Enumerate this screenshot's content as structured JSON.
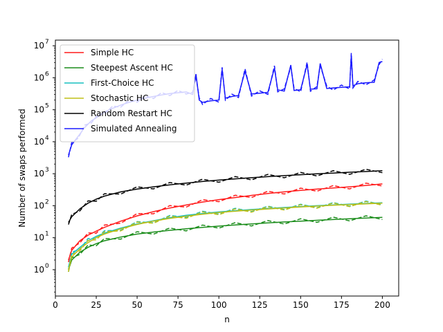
{
  "chart_data": {
    "type": "line",
    "title": "",
    "xlabel": "n",
    "ylabel": "Number of swaps performed",
    "xlim": [
      0,
      210
    ],
    "ylim": [
      0.15,
      15000000
    ],
    "yscale": "log",
    "grid": false,
    "legend_position": "top-left",
    "x_ticks": [
      0,
      25,
      50,
      75,
      100,
      125,
      150,
      175,
      200
    ],
    "y_ticks": [
      {
        "value": 1,
        "exp": "0"
      },
      {
        "value": 10,
        "exp": "1"
      },
      {
        "value": 100,
        "exp": "2"
      },
      {
        "value": 1000,
        "exp": "3"
      },
      {
        "value": 10000,
        "exp": "4"
      },
      {
        "value": 100000,
        "exp": "5"
      },
      {
        "value": 1000000,
        "exp": "6"
      },
      {
        "value": 10000000,
        "exp": "7"
      }
    ],
    "series": [
      {
        "name": "Simple HC",
        "color": "#ff1a1a",
        "x": [
          8,
          10,
          15,
          20,
          25,
          30,
          40,
          50,
          60,
          70,
          80,
          90,
          100,
          110,
          120,
          130,
          140,
          150,
          160,
          170,
          180,
          190,
          200
        ],
        "values": [
          2,
          4,
          8,
          12,
          16,
          21,
          33,
          48,
          65,
          85,
          105,
          130,
          155,
          180,
          210,
          240,
          270,
          300,
          330,
          360,
          390,
          430,
          480
        ]
      },
      {
        "name": "Steepest Ascent HC",
        "color": "#1a8c1a",
        "x": [
          8,
          10,
          15,
          20,
          25,
          30,
          40,
          50,
          60,
          70,
          80,
          90,
          100,
          110,
          120,
          130,
          140,
          150,
          160,
          170,
          180,
          190,
          200
        ],
        "values": [
          1,
          2,
          3.5,
          5,
          6.5,
          8,
          10.5,
          13,
          15,
          17,
          19,
          21,
          23,
          25,
          27,
          29,
          31,
          33,
          35,
          37,
          39,
          41,
          43
        ]
      },
      {
        "name": "First-Choice HC",
        "color": "#17bfbf",
        "x": [
          8,
          10,
          15,
          20,
          25,
          30,
          40,
          50,
          60,
          70,
          80,
          90,
          100,
          110,
          120,
          130,
          140,
          150,
          160,
          170,
          180,
          190,
          200
        ],
        "values": [
          1.2,
          3,
          5,
          8,
          11,
          14,
          20,
          27,
          34,
          42,
          50,
          57,
          64,
          70,
          76,
          82,
          88,
          94,
          100,
          106,
          112,
          118,
          124
        ]
      },
      {
        "name": "Stochastic HC",
        "color": "#bfbf17",
        "x": [
          8,
          10,
          15,
          20,
          25,
          30,
          40,
          50,
          60,
          70,
          80,
          90,
          100,
          110,
          120,
          130,
          140,
          150,
          160,
          170,
          180,
          190,
          200
        ],
        "values": [
          1,
          2.5,
          4.5,
          7,
          10,
          13,
          19,
          26,
          33,
          40,
          47,
          54,
          61,
          67,
          73,
          79,
          85,
          91,
          97,
          103,
          109,
          114,
          120
        ]
      },
      {
        "name": "Random Restart HC",
        "color": "#000000",
        "x": [
          8,
          10,
          15,
          20,
          25,
          30,
          40,
          50,
          60,
          70,
          80,
          90,
          100,
          110,
          120,
          130,
          140,
          150,
          160,
          170,
          180,
          190,
          200
        ],
        "values": [
          30,
          45,
          80,
          120,
          160,
          200,
          270,
          330,
          390,
          450,
          510,
          570,
          630,
          690,
          750,
          810,
          870,
          930,
          990,
          1050,
          1110,
          1170,
          1250
        ]
      },
      {
        "name": "Simulated Annealing",
        "color": "#1a1aff",
        "x": [
          8,
          10,
          14,
          18,
          22,
          26,
          30,
          35,
          40,
          45,
          50,
          55,
          60,
          65,
          70,
          75,
          80,
          84,
          86,
          88,
          90,
          95,
          100,
          102,
          104,
          108,
          112,
          116,
          120,
          125,
          130,
          134,
          136,
          140,
          144,
          146,
          150,
          154,
          156,
          160,
          162,
          166,
          170,
          175,
          180,
          181,
          182,
          185,
          190,
          195,
          198,
          200
        ],
        "values": [
          3800,
          8000,
          15000,
          28000,
          45000,
          60000,
          85000,
          110000,
          140000,
          170000,
          200000,
          230000,
          260000,
          290000,
          320000,
          340000,
          360000,
          300000,
          1300000,
          200000,
          170000,
          190000,
          200000,
          1800000,
          230000,
          260000,
          280000,
          1600000,
          310000,
          330000,
          350000,
          2000000,
          420000,
          380000,
          2500000,
          400000,
          420000,
          2600000,
          440000,
          450000,
          2800000,
          460000,
          480000,
          500000,
          520000,
          5000000,
          560000,
          650000,
          700000,
          720000,
          3000000,
          3200000
        ]
      }
    ]
  }
}
